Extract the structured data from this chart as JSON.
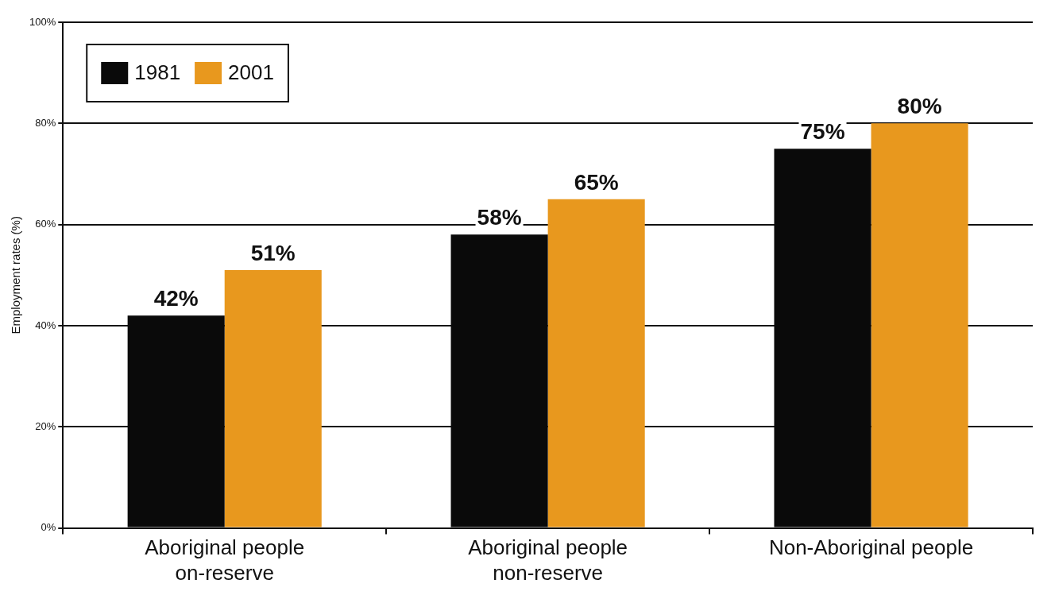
{
  "chart_data": {
    "type": "bar",
    "ylabel": "Employment rates (%)",
    "categories": [
      "Aboriginal people on-reserve",
      "Aboriginal people non-reserve",
      "Non-Aboriginal people"
    ],
    "series": [
      {
        "name": "1981",
        "color": "#0a0a0a",
        "values": [
          42,
          58,
          75
        ],
        "value_labels": [
          "42%",
          "58%",
          "75%"
        ]
      },
      {
        "name": "2001",
        "color": "#e8981e",
        "values": [
          51,
          65,
          80
        ],
        "value_labels": [
          "51%",
          "65%",
          "80%"
        ]
      }
    ],
    "ylim": [
      0,
      100
    ],
    "yticks": [
      {
        "value": 0,
        "label": "0%"
      },
      {
        "value": 20,
        "label": "20%"
      },
      {
        "value": 40,
        "label": "40%"
      },
      {
        "value": 60,
        "label": "60%"
      },
      {
        "value": 80,
        "label": "80%"
      },
      {
        "value": 100,
        "label": "100%"
      }
    ],
    "grid": "y",
    "legend": "top left"
  }
}
